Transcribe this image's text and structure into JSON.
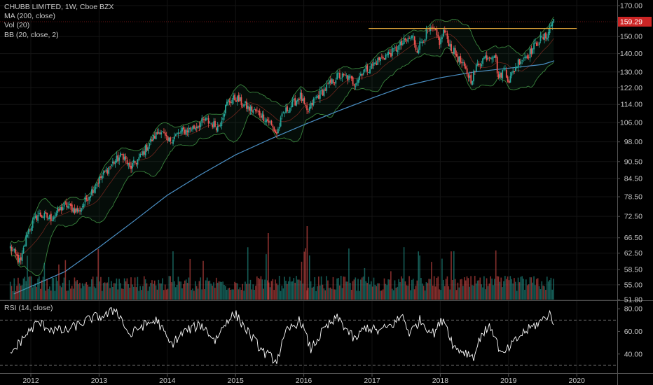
{
  "legend": {
    "title": "CHUBB LIMITED, 1W, Cboe BZX",
    "ma": "MA (200, close)",
    "vol": "Vol (20)",
    "bb": "BB (20, close, 2)",
    "rsi": "RSI (14, close)"
  },
  "colors": {
    "background": "#000000",
    "up": "#26a69a",
    "down": "#ef5350",
    "ma": "#4a8fc4",
    "bb": "#4caf50",
    "resistance": "#e6a93c",
    "price_line": "#8b1a1a",
    "price_tag": "#cc2525",
    "rsi": "#ffffff"
  },
  "chart_data": [
    {
      "type": "candlestick",
      "interval": "1W",
      "symbol": "CHUBB LIMITED",
      "exchange": "Cboe BZX",
      "last_price": "159.29",
      "y_axis_ticks": [
        "170.00",
        "150.00",
        "140.00",
        "130.00",
        "122.00",
        "114.00",
        "106.00",
        "98.00",
        "90.50",
        "84.50",
        "78.50",
        "72.50",
        "66.50",
        "62.50",
        "58.50",
        "55.00",
        "51.80"
      ],
      "y_axis_scale": "log",
      "x_axis_ticks": [
        "2012",
        "2013",
        "2014",
        "2015",
        "2016",
        "2017",
        "2018",
        "2019",
        "2020"
      ],
      "resistance_level": 155,
      "resistance_start_year": 2016.95,
      "resistance_end_year": 2020.0,
      "keypoints": [
        {
          "x": 2011.7,
          "y": 64
        },
        {
          "x": 2011.85,
          "y": 60
        },
        {
          "x": 2011.95,
          "y": 68
        },
        {
          "x": 2012.1,
          "y": 73
        },
        {
          "x": 2012.3,
          "y": 72
        },
        {
          "x": 2012.5,
          "y": 76
        },
        {
          "x": 2012.7,
          "y": 74
        },
        {
          "x": 2012.85,
          "y": 79
        },
        {
          "x": 2013.0,
          "y": 84
        },
        {
          "x": 2013.2,
          "y": 90
        },
        {
          "x": 2013.35,
          "y": 93
        },
        {
          "x": 2013.45,
          "y": 88
        },
        {
          "x": 2013.6,
          "y": 92
        },
        {
          "x": 2013.75,
          "y": 98
        },
        {
          "x": 2013.9,
          "y": 103
        },
        {
          "x": 2014.0,
          "y": 98
        },
        {
          "x": 2014.2,
          "y": 102
        },
        {
          "x": 2014.4,
          "y": 104
        },
        {
          "x": 2014.55,
          "y": 107
        },
        {
          "x": 2014.75,
          "y": 104
        },
        {
          "x": 2014.88,
          "y": 115
        },
        {
          "x": 2015.0,
          "y": 117
        },
        {
          "x": 2015.2,
          "y": 112
        },
        {
          "x": 2015.35,
          "y": 110
        },
        {
          "x": 2015.5,
          "y": 106
        },
        {
          "x": 2015.6,
          "y": 101
        },
        {
          "x": 2015.7,
          "y": 110
        },
        {
          "x": 2015.8,
          "y": 113
        },
        {
          "x": 2015.95,
          "y": 118
        },
        {
          "x": 2016.05,
          "y": 110
        },
        {
          "x": 2016.15,
          "y": 116
        },
        {
          "x": 2016.3,
          "y": 121
        },
        {
          "x": 2016.5,
          "y": 128
        },
        {
          "x": 2016.65,
          "y": 127
        },
        {
          "x": 2016.75,
          "y": 124
        },
        {
          "x": 2016.85,
          "y": 130
        },
        {
          "x": 2016.95,
          "y": 132
        },
        {
          "x": 2017.15,
          "y": 138
        },
        {
          "x": 2017.3,
          "y": 141
        },
        {
          "x": 2017.45,
          "y": 146
        },
        {
          "x": 2017.6,
          "y": 150
        },
        {
          "x": 2017.65,
          "y": 142
        },
        {
          "x": 2017.8,
          "y": 152
        },
        {
          "x": 2017.9,
          "y": 154
        },
        {
          "x": 2018.0,
          "y": 146
        },
        {
          "x": 2018.05,
          "y": 154
        },
        {
          "x": 2018.15,
          "y": 144
        },
        {
          "x": 2018.3,
          "y": 135
        },
        {
          "x": 2018.45,
          "y": 126
        },
        {
          "x": 2018.55,
          "y": 134
        },
        {
          "x": 2018.65,
          "y": 138
        },
        {
          "x": 2018.8,
          "y": 140
        },
        {
          "x": 2018.85,
          "y": 127
        },
        {
          "x": 2018.95,
          "y": 132
        },
        {
          "x": 2019.0,
          "y": 125
        },
        {
          "x": 2019.15,
          "y": 136
        },
        {
          "x": 2019.3,
          "y": 140
        },
        {
          "x": 2019.45,
          "y": 148
        },
        {
          "x": 2019.55,
          "y": 150
        },
        {
          "x": 2019.62,
          "y": 157
        },
        {
          "x": 2019.67,
          "y": 162
        }
      ],
      "ma200": [
        {
          "x": 2011.75,
          "y": 53
        },
        {
          "x": 2012.5,
          "y": 58
        },
        {
          "x": 2013.0,
          "y": 64
        },
        {
          "x": 2013.5,
          "y": 71
        },
        {
          "x": 2014.0,
          "y": 79
        },
        {
          "x": 2014.5,
          "y": 86
        },
        {
          "x": 2015.0,
          "y": 93
        },
        {
          "x": 2015.5,
          "y": 99
        },
        {
          "x": 2016.0,
          "y": 105
        },
        {
          "x": 2016.5,
          "y": 111
        },
        {
          "x": 2017.0,
          "y": 117
        },
        {
          "x": 2017.5,
          "y": 123
        },
        {
          "x": 2018.0,
          "y": 127
        },
        {
          "x": 2018.5,
          "y": 130
        },
        {
          "x": 2019.0,
          "y": 132
        },
        {
          "x": 2019.5,
          "y": 134
        },
        {
          "x": 2019.67,
          "y": 136
        }
      ]
    },
    {
      "type": "line",
      "title": "RSI (14, close)",
      "y_axis_ticks": [
        "80.00",
        "60.00",
        "40.00"
      ],
      "upper_band": 70,
      "lower_band": 30,
      "keypoints": [
        {
          "x": 2011.7,
          "y": 40
        },
        {
          "x": 2011.9,
          "y": 55
        },
        {
          "x": 2012.1,
          "y": 68
        },
        {
          "x": 2012.3,
          "y": 62
        },
        {
          "x": 2012.5,
          "y": 60
        },
        {
          "x": 2012.7,
          "y": 66
        },
        {
          "x": 2012.9,
          "y": 72
        },
        {
          "x": 2013.1,
          "y": 74
        },
        {
          "x": 2013.25,
          "y": 80
        },
        {
          "x": 2013.45,
          "y": 56
        },
        {
          "x": 2013.6,
          "y": 64
        },
        {
          "x": 2013.85,
          "y": 70
        },
        {
          "x": 2014.05,
          "y": 48
        },
        {
          "x": 2014.25,
          "y": 60
        },
        {
          "x": 2014.5,
          "y": 66
        },
        {
          "x": 2014.7,
          "y": 52
        },
        {
          "x": 2014.9,
          "y": 72
        },
        {
          "x": 2015.0,
          "y": 75
        },
        {
          "x": 2015.2,
          "y": 58
        },
        {
          "x": 2015.4,
          "y": 42
        },
        {
          "x": 2015.6,
          "y": 34
        },
        {
          "x": 2015.75,
          "y": 60
        },
        {
          "x": 2015.95,
          "y": 70
        },
        {
          "x": 2016.1,
          "y": 44
        },
        {
          "x": 2016.3,
          "y": 62
        },
        {
          "x": 2016.5,
          "y": 72
        },
        {
          "x": 2016.75,
          "y": 52
        },
        {
          "x": 2016.9,
          "y": 64
        },
        {
          "x": 2017.1,
          "y": 60
        },
        {
          "x": 2017.3,
          "y": 66
        },
        {
          "x": 2017.45,
          "y": 74
        },
        {
          "x": 2017.55,
          "y": 58
        },
        {
          "x": 2017.7,
          "y": 70
        },
        {
          "x": 2017.9,
          "y": 58
        },
        {
          "x": 2018.05,
          "y": 72
        },
        {
          "x": 2018.2,
          "y": 46
        },
        {
          "x": 2018.35,
          "y": 42
        },
        {
          "x": 2018.5,
          "y": 38
        },
        {
          "x": 2018.6,
          "y": 58
        },
        {
          "x": 2018.75,
          "y": 64
        },
        {
          "x": 2018.9,
          "y": 38
        },
        {
          "x": 2019.05,
          "y": 48
        },
        {
          "x": 2019.2,
          "y": 58
        },
        {
          "x": 2019.35,
          "y": 64
        },
        {
          "x": 2019.5,
          "y": 70
        },
        {
          "x": 2019.6,
          "y": 76
        },
        {
          "x": 2019.67,
          "y": 68
        }
      ]
    }
  ]
}
